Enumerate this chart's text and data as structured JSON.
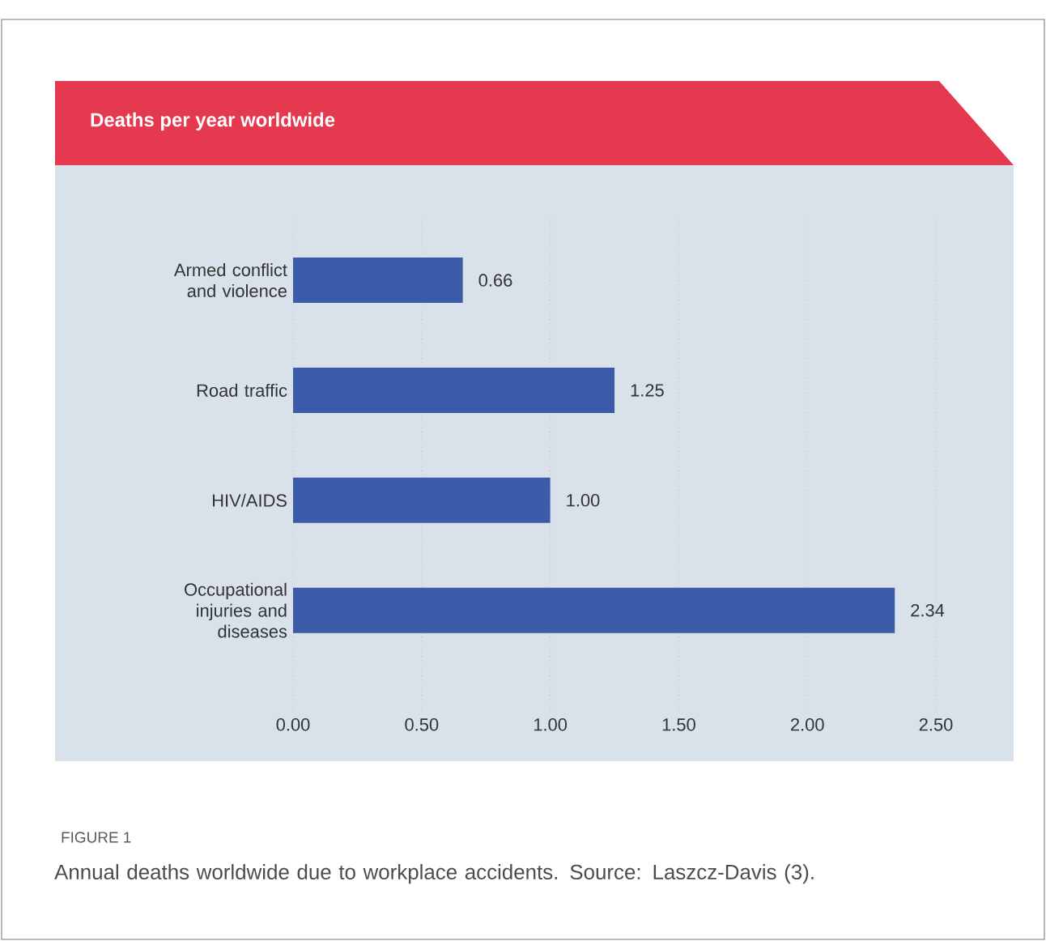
{
  "chart_data": {
    "type": "bar",
    "orientation": "horizontal",
    "title": "Deaths per year worldwide",
    "categories": [
      "Armed conflict and violence",
      "Road traffic",
      "HIV/AIDS",
      "Occupational injuries and diseases"
    ],
    "values": [
      0.66,
      1.25,
      1.0,
      2.34
    ],
    "value_labels": [
      "0.66",
      "1.25",
      "1.00",
      "2.34"
    ],
    "color": "#3b5ba9",
    "xlim": [
      0,
      2.5
    ],
    "xticks": [
      {
        "value": 0,
        "label": "0.00"
      },
      {
        "value": 0.5,
        "label": "0.50"
      },
      {
        "value": 1,
        "label": "1.00"
      },
      {
        "value": 1.5,
        "label": "1.50"
      },
      {
        "value": 2,
        "label": "2.00"
      },
      {
        "value": 2.5,
        "label": "2.50"
      }
    ],
    "grid": "x",
    "annotations": [
      "FIGURE 1",
      "Annual deaths worldwide due to workplace accidents. Source: Laszcz-Davis (3)."
    ]
  }
}
